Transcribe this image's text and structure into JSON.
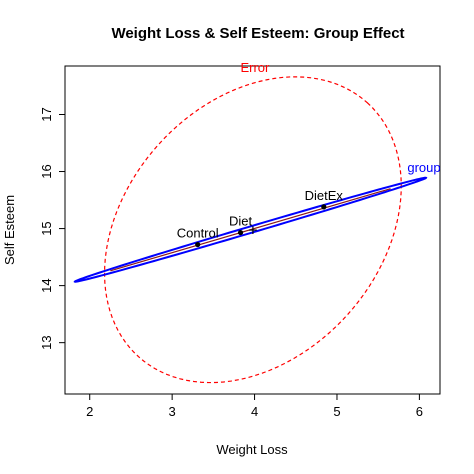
{
  "chart_data": {
    "type": "scatter",
    "title": "Weight Loss & Self Esteem: Group Effect",
    "xlabel": "Weight Loss",
    "ylabel": "Self Esteem",
    "xlim": [
      1.7,
      6.25
    ],
    "ylim": [
      12.1,
      17.85
    ],
    "x_ticks": [
      2,
      3,
      4,
      5,
      6
    ],
    "y_ticks": [
      13,
      14,
      15,
      16,
      17
    ],
    "grid": false,
    "legend": "none",
    "grand_mean": {
      "x": 3.98,
      "y": 14.98,
      "label": "+"
    },
    "points": [
      {
        "label": "Control",
        "x": 3.31,
        "y": 14.72
      },
      {
        "label": "Diet",
        "x": 3.83,
        "y": 14.93
      },
      {
        "label": "DietEx",
        "x": 4.84,
        "y": 15.38
      }
    ],
    "ellipses": [
      {
        "name": "Error",
        "color": "#ff0000",
        "style": "dashed",
        "center": [
          3.98,
          14.98
        ],
        "x_range": [
          2.18,
          5.78
        ],
        "y_range": [
          12.3,
          17.66
        ]
      },
      {
        "name": "group",
        "color": "#0000ff",
        "style": "solid",
        "center": [
          3.95,
          14.98
        ],
        "major_axis_end1": [
          1.82,
          14.07
        ],
        "major_axis_end2": [
          6.08,
          15.89
        ],
        "half_minor_width_y": 0.04
      }
    ],
    "group_axis_color": "#8b1a1a",
    "colors": {
      "error": "#ff0000",
      "group": "#0000ff",
      "axis_text": "#000000"
    }
  }
}
